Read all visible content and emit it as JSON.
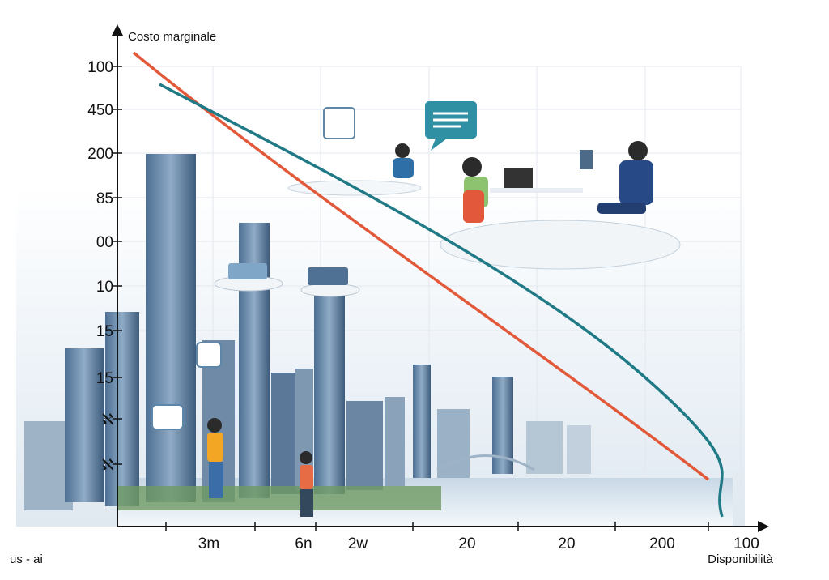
{
  "axes": {
    "y_title": "Costo marginale",
    "x_title": "Disponibilità",
    "y_labels": [
      "100",
      "450",
      "200",
      "85",
      "00",
      "10",
      "15",
      "15",
      "ℵ",
      "ℵ"
    ],
    "x_labels": [
      "3m",
      "6n",
      "2w",
      "20",
      "20",
      "200",
      "100"
    ]
  },
  "footer_text": "us - ai"
}
